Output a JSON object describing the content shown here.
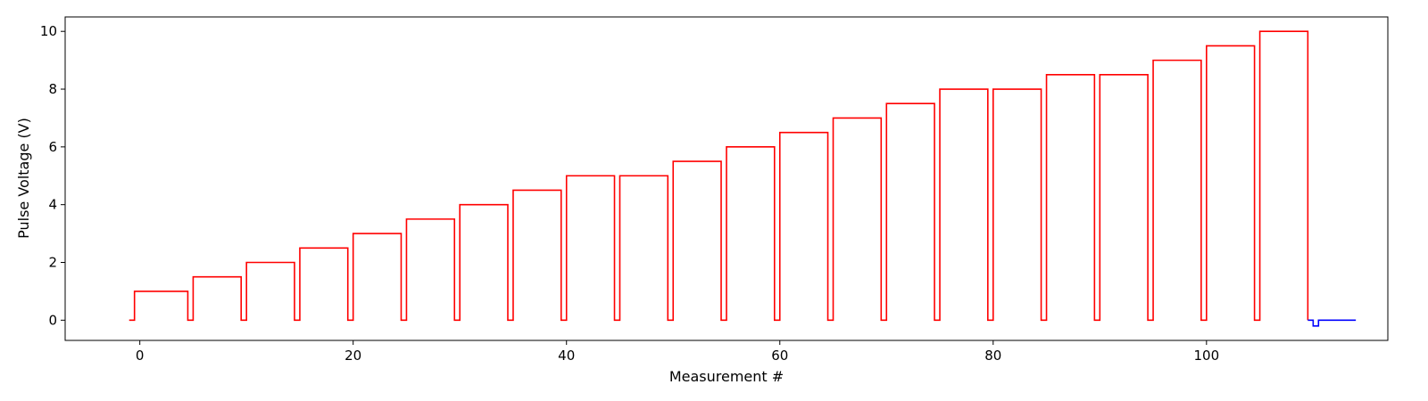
{
  "chart_data": {
    "type": "line",
    "title": "",
    "xlabel": "Measurement #",
    "ylabel": "Pulse Voltage (V)",
    "xlim": [
      -7,
      117
    ],
    "ylim": [
      -0.7,
      10.5
    ],
    "xticks": [
      0,
      20,
      40,
      60,
      80,
      100
    ],
    "yticks": [
      0,
      2,
      4,
      6,
      8,
      10
    ],
    "grid": false,
    "legend": "none",
    "series": [
      {
        "color": "#ff0000",
        "drawstyle": "steps",
        "x": [
          -1.0,
          -0.5,
          4.5,
          5.0,
          9.5,
          10.0,
          14.5,
          15.0,
          19.5,
          20.0,
          24.5,
          25.0,
          29.5,
          30.0,
          34.5,
          35.0,
          39.5,
          40.0,
          44.5,
          45.0,
          49.5,
          50.0,
          54.5,
          55.0,
          59.5,
          60.0,
          64.5,
          65.0,
          69.5,
          70.0,
          74.5,
          75.0,
          79.5,
          80.0,
          84.5,
          85.0,
          89.5,
          90.0,
          94.5,
          95.0,
          99.5,
          100.0,
          104.5,
          105.0,
          109.5
        ],
        "y": [
          0,
          1.0,
          0,
          1.5,
          0,
          2.0,
          0,
          2.5,
          0,
          3.0,
          0,
          3.5,
          0,
          4.0,
          0,
          4.5,
          0,
          5.0,
          0,
          5.0,
          0,
          5.5,
          0,
          6.0,
          0,
          6.5,
          0,
          7.0,
          0,
          7.5,
          0,
          8.0,
          0,
          8.0,
          0,
          8.5,
          0,
          8.5,
          0,
          9.0,
          0,
          9.5,
          0,
          10.0,
          0
        ]
      },
      {
        "color": "#0000ff",
        "drawstyle": "steps",
        "x": [
          109.5,
          110.0,
          110.5,
          114.0
        ],
        "y": [
          0,
          -0.2,
          0,
          0
        ]
      }
    ]
  }
}
